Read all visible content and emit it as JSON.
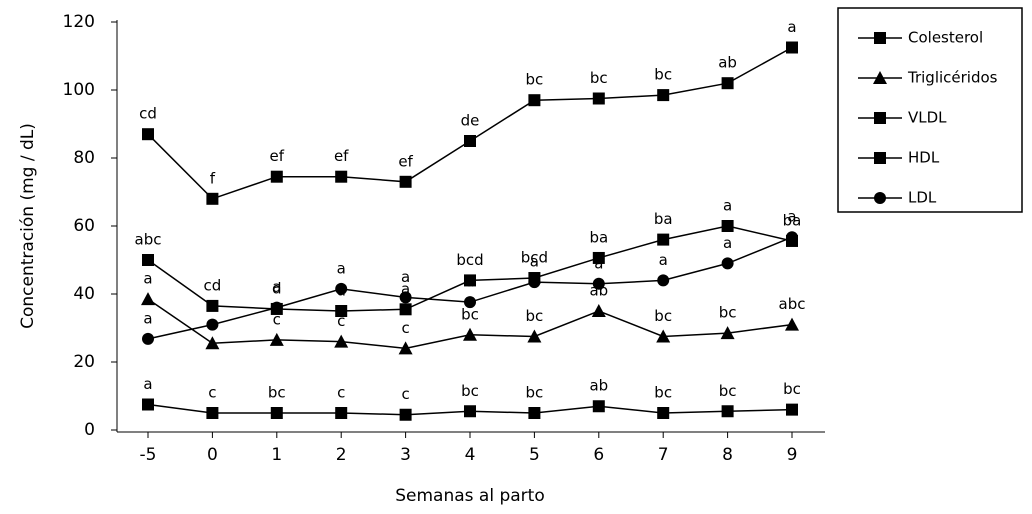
{
  "chart_data": {
    "type": "line",
    "xlabel": "Semanas al parto",
    "ylabel": "Concentración (mg / dL)",
    "categories": [
      "-5",
      "0",
      "1",
      "2",
      "3",
      "4",
      "5",
      "6",
      "7",
      "8",
      "9"
    ],
    "ylim": [
      0,
      120
    ],
    "yticks": [
      0,
      20,
      40,
      60,
      80,
      100,
      120
    ],
    "legend": "right",
    "series": [
      {
        "name": "Colesterol",
        "color": "#000000",
        "marker": "square",
        "values": [
          87,
          68,
          74.5,
          74.5,
          73,
          85,
          97,
          97.5,
          98.5,
          102,
          112.5
        ],
        "letters": [
          "cd",
          "f",
          "ef",
          "ef",
          "ef",
          "de",
          "bc",
          "bc",
          "bc",
          "ab",
          "a"
        ]
      },
      {
        "name": "Triglicéridos",
        "color": "#000000",
        "marker": "triangle",
        "values": [
          38.5,
          25.5,
          26.5,
          26,
          24,
          28,
          27.5,
          35,
          27.5,
          28.5,
          31
        ],
        "letters": [
          "a",
          "c",
          "c",
          "c",
          "c",
          "bc",
          "bc",
          "ab",
          "bc",
          "bc",
          "abc"
        ]
      },
      {
        "name": "VLDL",
        "color": "#000000",
        "marker": "bowtie",
        "values": [
          7.5,
          5,
          5,
          5,
          4.5,
          5.5,
          5,
          7,
          5,
          5.5,
          6
        ],
        "letters": [
          "a",
          "c",
          "bc",
          "c",
          "c",
          "bc",
          "bc",
          "ab",
          "bc",
          "bc",
          "bc"
        ]
      },
      {
        "name": "HDL",
        "color": "#000000",
        "marker": "square",
        "values": [
          50,
          36.5,
          35.6,
          35,
          35.5,
          44,
          44.7,
          50.6,
          56,
          60,
          55.6
        ],
        "letters": [
          "abc",
          "cd",
          "d",
          "d",
          "a",
          "bcd",
          "bcd",
          "ba",
          "ba",
          "a",
          "ba"
        ]
      },
      {
        "name": "LDL",
        "color": "#000000",
        "marker": "circle",
        "values": [
          26.8,
          31,
          36,
          41.5,
          39,
          37.6,
          43.5,
          43,
          44,
          49,
          56.7
        ],
        "letters": [
          "a",
          "a",
          "a",
          "a",
          "a",
          "a",
          "a",
          "a",
          "a",
          "a",
          "a"
        ]
      }
    ]
  }
}
